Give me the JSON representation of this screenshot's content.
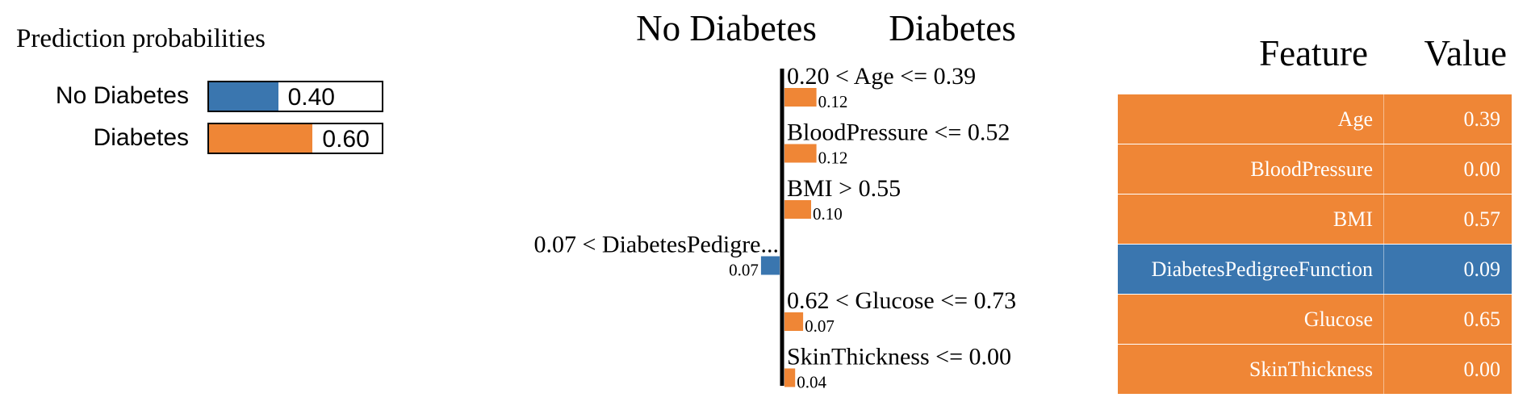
{
  "colors": {
    "no_diabetes": "#3a76af",
    "diabetes": "#ef8636"
  },
  "chart_data": [
    {
      "type": "bar",
      "title": "Prediction probabilities",
      "categories": [
        "No Diabetes",
        "Diabetes"
      ],
      "values": [
        0.4,
        0.6
      ],
      "value_labels": [
        "0.40",
        "0.60"
      ],
      "xlim": [
        0,
        1
      ]
    },
    {
      "type": "bar",
      "orientation": "horizontal",
      "class_labels": {
        "negative": "No Diabetes",
        "positive": "Diabetes"
      },
      "items": [
        {
          "label": "0.20 < Age <= 0.39",
          "value": 0.12,
          "value_label": "0.12",
          "class": "positive"
        },
        {
          "label": "BloodPressure <= 0.52",
          "value": 0.12,
          "value_label": "0.12",
          "class": "positive"
        },
        {
          "label": "BMI > 0.55",
          "value": 0.1,
          "value_label": "0.10",
          "class": "positive"
        },
        {
          "label": "0.07 < DiabetesPedigre...",
          "value": 0.07,
          "value_label": "0.07",
          "class": "negative"
        },
        {
          "label": "0.62 < Glucose <= 0.73",
          "value": 0.07,
          "value_label": "0.07",
          "class": "positive"
        },
        {
          "label": "SkinThickness <= 0.00",
          "value": 0.04,
          "value_label": "0.04",
          "class": "positive"
        }
      ]
    },
    {
      "type": "table",
      "columns": [
        "Feature",
        "Value"
      ],
      "rows": [
        {
          "feature": "Age",
          "value": "0.39",
          "class": "positive"
        },
        {
          "feature": "BloodPressure",
          "value": "0.00",
          "class": "positive"
        },
        {
          "feature": "BMI",
          "value": "0.57",
          "class": "positive"
        },
        {
          "feature": "DiabetesPedigreeFunction",
          "value": "0.09",
          "class": "negative"
        },
        {
          "feature": "Glucose",
          "value": "0.65",
          "class": "positive"
        },
        {
          "feature": "SkinThickness",
          "value": "0.00",
          "class": "positive"
        }
      ]
    }
  ]
}
